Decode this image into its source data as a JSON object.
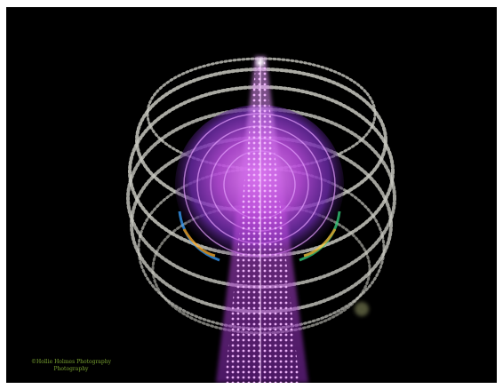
{
  "image": {
    "subject": "long-exposure-night-ride-tower",
    "background_color": "#000000",
    "frame_color": "#ffffff",
    "colors": {
      "tower_lights": "#d05ce8",
      "inner_swirl": "#b64bd9",
      "outer_rings": "#c8c8c0",
      "watermark": "#8fbf3a"
    }
  },
  "watermark": {
    "line1": "©Hollie Holmes Photography",
    "line2": "Photography"
  }
}
